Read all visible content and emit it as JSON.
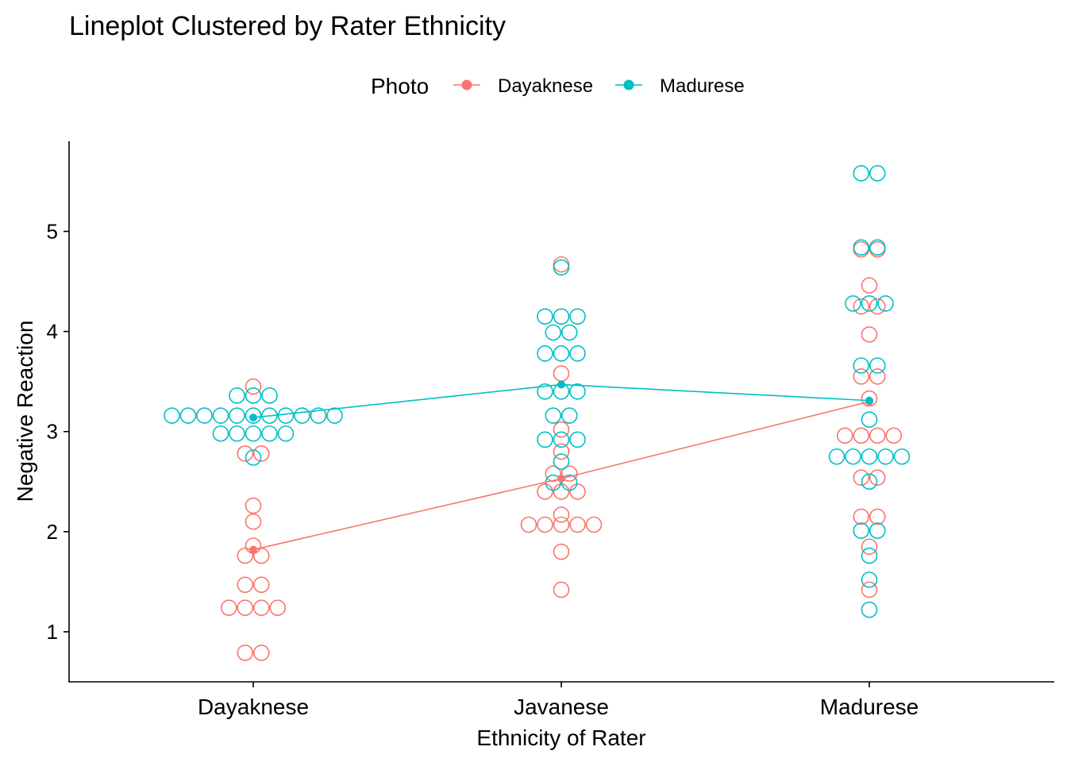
{
  "chart_data": {
    "type": "line",
    "title": "Lineplot Clustered by Rater Ethnicity",
    "xlabel": "Ethnicity of Rater",
    "ylabel": "Negative Reaction",
    "categories": [
      "Dayaknese",
      "Javanese",
      "Madurese"
    ],
    "ylim": [
      0.5,
      5.9
    ],
    "yticks": [
      1,
      2,
      3,
      4,
      5
    ],
    "grid": false,
    "legend": {
      "title": "Photo",
      "position": "top"
    },
    "series": [
      {
        "name": "Dayaknese",
        "color": "#F8766D",
        "means": [
          1.82,
          2.53,
          3.3
        ],
        "points": [
          [
            3.45,
            2.78,
            2.78,
            2.26,
            2.1,
            1.86,
            1.76,
            1.76,
            1.47,
            1.47,
            1.24,
            1.24,
            1.24,
            1.24,
            0.79,
            0.79
          ],
          [
            4.67,
            3.58,
            3.02,
            2.8,
            2.58,
            2.58,
            2.4,
            2.4,
            2.4,
            2.17,
            2.07,
            2.07,
            2.07,
            2.07,
            2.07,
            1.8,
            1.42
          ],
          [
            4.82,
            4.82,
            4.46,
            4.25,
            4.25,
            3.97,
            3.55,
            3.55,
            3.33,
            2.96,
            2.96,
            2.96,
            2.96,
            2.54,
            2.54,
            2.15,
            2.15,
            1.85,
            1.42
          ]
        ]
      },
      {
        "name": "Madurese",
        "color": "#00BFC4",
        "means": [
          3.14,
          3.47,
          3.31
        ],
        "points": [
          [
            3.36,
            3.36,
            3.36,
            3.16,
            3.16,
            3.16,
            3.16,
            3.16,
            3.16,
            3.16,
            3.16,
            3.16,
            3.16,
            3.16,
            2.98,
            2.98,
            2.98,
            2.98,
            2.98,
            2.74
          ],
          [
            4.64,
            4.15,
            4.15,
            4.15,
            3.99,
            3.99,
            3.78,
            3.78,
            3.78,
            3.4,
            3.4,
            3.4,
            3.16,
            3.16,
            2.92,
            2.92,
            2.92,
            2.7,
            2.49,
            2.49
          ],
          [
            5.58,
            5.58,
            4.84,
            4.84,
            4.28,
            4.28,
            4.28,
            3.66,
            3.66,
            3.12,
            2.75,
            2.75,
            2.75,
            2.75,
            2.75,
            2.5,
            2.01,
            2.01,
            1.76,
            1.52,
            1.22
          ]
        ]
      }
    ]
  }
}
